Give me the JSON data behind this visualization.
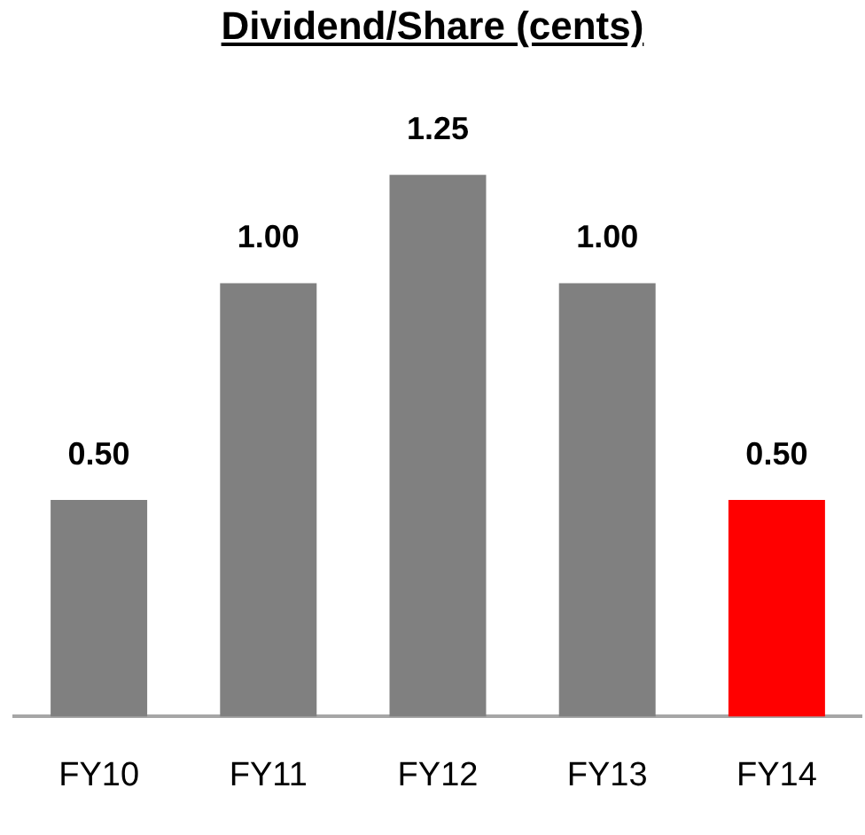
{
  "chart_data": {
    "type": "bar",
    "title": "Dividend/Share (cents)",
    "categories": [
      "FY10",
      "FY11",
      "FY12",
      "FY13",
      "FY14"
    ],
    "values": [
      0.5,
      1.0,
      1.25,
      1.0,
      0.5
    ],
    "colors": [
      "#808080",
      "#808080",
      "#808080",
      "#808080",
      "#ff0000"
    ],
    "value_labels": [
      "0.50",
      "1.00",
      "1.25",
      "1.00",
      "0.50"
    ]
  }
}
